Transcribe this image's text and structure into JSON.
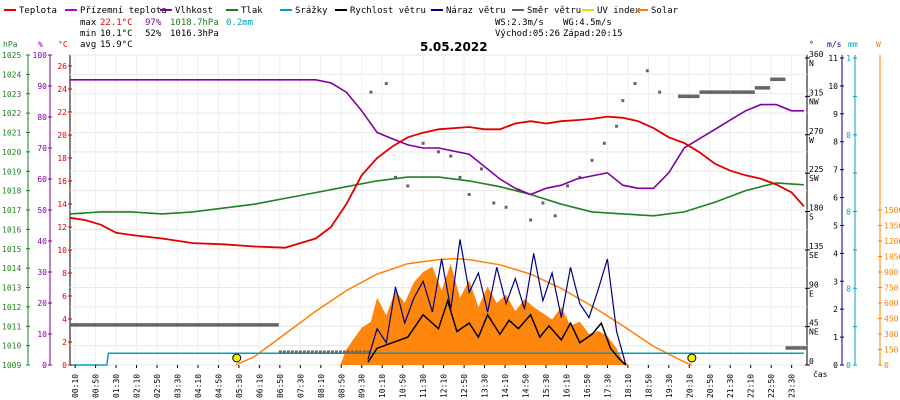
{
  "legend": [
    {
      "label": "Teplota",
      "color": "#e00000"
    },
    {
      "label": "Přízemní teplota",
      "color": "#c000c0"
    },
    {
      "label": "Vlhkost",
      "color": "#8000a0"
    },
    {
      "label": "Tlak",
      "color": "#208020"
    },
    {
      "label": "Srážky",
      "color": "#00a0c0"
    },
    {
      "label": "Rychlost větru",
      "color": "#000000"
    },
    {
      "label": "Náraz větru",
      "color": "#000080"
    },
    {
      "label": "Směr větru",
      "color": "#606060"
    },
    {
      "label": "UV index",
      "color": "#e0e000"
    },
    {
      "label": "Solar",
      "color": "#ff8000"
    }
  ],
  "stats": {
    "max": {
      "label": "max",
      "temp": "22.1°C",
      "hum": "97%",
      "press": "1018.7hPa",
      "rain": "0.2mm"
    },
    "min": {
      "label": "min",
      "temp": "10.1°C",
      "hum": "52%",
      "press": "1016.3hPa"
    },
    "avg": {
      "label": "avg",
      "temp": "15.9°C"
    }
  },
  "wind_info": {
    "ws": "WS:2.3m/s",
    "wg": "WG:4.5m/s",
    "sunrise": "Východ:05:26",
    "sunset": "Západ:20:15"
  },
  "date_title": "5.05.2022",
  "axis_units": {
    "hpa": "hPa",
    "pct": "%",
    "degc": "°C",
    "deg": "°",
    "ms": "m/s",
    "mm": "mm",
    "w": "W",
    "time": "čas"
  },
  "axes": {
    "hpa": [
      "1009",
      "1010",
      "1011",
      "1012",
      "1013",
      "1014",
      "1015",
      "1016",
      "1017",
      "1018",
      "1019",
      "1020",
      "1021",
      "1022",
      "1023",
      "1024",
      "1025"
    ],
    "pct": [
      "0",
      "10",
      "20",
      "30",
      "40",
      "50",
      "60",
      "70",
      "80",
      "90",
      "100"
    ],
    "degc": [
      "0",
      "2",
      "4",
      "6",
      "8",
      "10",
      "12",
      "14",
      "16",
      "18",
      "20",
      "22",
      "24",
      "26"
    ],
    "winddir": [
      {
        "v": 0,
        "t": "0"
      },
      {
        "v": 45,
        "t": "45",
        "s": "NE"
      },
      {
        "v": 90,
        "t": "90",
        "s": "E"
      },
      {
        "v": 135,
        "t": "135",
        "s": "SE"
      },
      {
        "v": 180,
        "t": "180",
        "s": "S"
      },
      {
        "v": 225,
        "t": "225",
        "s": "SW"
      },
      {
        "v": 270,
        "t": "270",
        "s": "W"
      },
      {
        "v": 315,
        "t": "315",
        "s": "NW"
      },
      {
        "v": 360,
        "t": "360",
        "s": "N"
      }
    ],
    "ms": [
      "0",
      "1",
      "2",
      "3",
      "4",
      "5",
      "6",
      "7",
      "8",
      "9",
      "10",
      "11"
    ],
    "mm": [
      "0",
      "1"
    ],
    "mmTicks": [
      {
        "v": 0,
        "t": "0"
      },
      {
        "v": 0.125,
        "t": ""
      },
      {
        "v": 0.25,
        "t": "0"
      },
      {
        "v": 0.375,
        "t": ""
      },
      {
        "v": 0.5,
        "t": "0"
      },
      {
        "v": 0.625,
        "t": ""
      },
      {
        "v": 0.75,
        "t": "0"
      },
      {
        "v": 0.875,
        "t": ""
      },
      {
        "v": 1,
        "t": "1"
      }
    ],
    "solar": [
      "0",
      "150",
      "300",
      "450",
      "600",
      "750",
      "900",
      "1050",
      "1200",
      "1350",
      "1500"
    ],
    "time": [
      "00:10",
      "00:50",
      "01:30",
      "02:10",
      "02:50",
      "03:30",
      "04:10",
      "04:50",
      "05:30",
      "06:10",
      "06:50",
      "07:30",
      "08:10",
      "08:50",
      "09:30",
      "10:10",
      "10:50",
      "11:30",
      "12:10",
      "12:50",
      "13:30",
      "14:10",
      "14:50",
      "15:30",
      "16:10",
      "16:50",
      "17:30",
      "18:10",
      "18:50",
      "19:30",
      "20:10",
      "20:50",
      "21:30",
      "22:10",
      "22:50",
      "23:30"
    ]
  },
  "chart_data": {
    "type": "line",
    "x_unit": "hour of day",
    "series": [
      {
        "name": "Teplota",
        "unit": "°C",
        "color": "#e00000",
        "points": [
          [
            0.0,
            12.8
          ],
          [
            0.5,
            12.6
          ],
          [
            1.0,
            12.2
          ],
          [
            1.5,
            11.5
          ],
          [
            2.0,
            11.3
          ],
          [
            3.0,
            11.0
          ],
          [
            4.0,
            10.6
          ],
          [
            5.0,
            10.5
          ],
          [
            6.0,
            10.3
          ],
          [
            7.0,
            10.2
          ],
          [
            8.0,
            11.0
          ],
          [
            8.5,
            12.0
          ],
          [
            9.0,
            14.0
          ],
          [
            9.5,
            16.5
          ],
          [
            10.0,
            18.0
          ],
          [
            10.5,
            19.0
          ],
          [
            11.0,
            19.8
          ],
          [
            11.5,
            20.2
          ],
          [
            12.0,
            20.5
          ],
          [
            13.0,
            20.7
          ],
          [
            13.5,
            20.5
          ],
          [
            14.0,
            20.5
          ],
          [
            14.5,
            21.0
          ],
          [
            15.0,
            21.2
          ],
          [
            15.5,
            21.0
          ],
          [
            16.0,
            21.2
          ],
          [
            16.5,
            21.3
          ],
          [
            17.0,
            21.4
          ],
          [
            17.5,
            21.6
          ],
          [
            18.0,
            21.5
          ],
          [
            18.5,
            21.2
          ],
          [
            19.0,
            20.6
          ],
          [
            19.5,
            19.8
          ],
          [
            20.0,
            19.3
          ],
          [
            20.5,
            18.5
          ],
          [
            21.0,
            17.5
          ],
          [
            21.5,
            16.9
          ],
          [
            22.0,
            16.5
          ],
          [
            22.5,
            16.2
          ],
          [
            23.0,
            15.7
          ],
          [
            23.5,
            15.0
          ],
          [
            23.9,
            13.8
          ]
        ]
      },
      {
        "name": "Vlhkost",
        "unit": "%",
        "color": "#8000a0",
        "points": [
          [
            0.0,
            92
          ],
          [
            4.0,
            92
          ],
          [
            6.0,
            92
          ],
          [
            7.0,
            92
          ],
          [
            8.0,
            92
          ],
          [
            8.5,
            91
          ],
          [
            9.0,
            88
          ],
          [
            9.5,
            82
          ],
          [
            10.0,
            75
          ],
          [
            10.5,
            73
          ],
          [
            11.0,
            71
          ],
          [
            11.5,
            70
          ],
          [
            12.0,
            70
          ],
          [
            13.0,
            68
          ],
          [
            14.0,
            60
          ],
          [
            14.5,
            57
          ],
          [
            15.0,
            55
          ],
          [
            15.5,
            57
          ],
          [
            16.0,
            58
          ],
          [
            16.5,
            60
          ],
          [
            17.0,
            61
          ],
          [
            17.5,
            62
          ],
          [
            18.0,
            58
          ],
          [
            18.5,
            57
          ],
          [
            19.0,
            57
          ],
          [
            19.5,
            62
          ],
          [
            20.0,
            70
          ],
          [
            20.5,
            73
          ],
          [
            21.0,
            76
          ],
          [
            21.5,
            79
          ],
          [
            22.0,
            82
          ],
          [
            22.5,
            84
          ],
          [
            23.0,
            84
          ],
          [
            23.5,
            82
          ],
          [
            23.9,
            82
          ]
        ]
      },
      {
        "name": "Tlak",
        "unit": "hPa",
        "color": "#208020",
        "points": [
          [
            0.0,
            1016.8
          ],
          [
            1.0,
            1016.9
          ],
          [
            2.0,
            1016.9
          ],
          [
            3.0,
            1016.8
          ],
          [
            4.0,
            1016.9
          ],
          [
            5.0,
            1017.1
          ],
          [
            6.0,
            1017.3
          ],
          [
            7.0,
            1017.6
          ],
          [
            8.0,
            1017.9
          ],
          [
            9.0,
            1018.2
          ],
          [
            10.0,
            1018.5
          ],
          [
            11.0,
            1018.7
          ],
          [
            12.0,
            1018.7
          ],
          [
            13.0,
            1018.5
          ],
          [
            14.0,
            1018.2
          ],
          [
            15.0,
            1017.8
          ],
          [
            16.0,
            1017.3
          ],
          [
            17.0,
            1016.9
          ],
          [
            18.0,
            1016.8
          ],
          [
            19.0,
            1016.7
          ],
          [
            20.0,
            1016.9
          ],
          [
            21.0,
            1017.4
          ],
          [
            22.0,
            1018.0
          ],
          [
            23.0,
            1018.4
          ],
          [
            23.9,
            1018.3
          ]
        ]
      },
      {
        "name": "Srážky",
        "unit": "mm",
        "color": "#00a0c0",
        "points": [
          [
            0.0,
            0.0
          ],
          [
            1.2,
            0.0
          ],
          [
            1.25,
            0.2
          ],
          [
            23.9,
            0.2
          ]
        ]
      },
      {
        "name": "Solar",
        "unit": "W/m2",
        "color": "#ff8000",
        "points": [
          [
            5.4,
            0
          ],
          [
            6.0,
            80
          ],
          [
            7.0,
            300
          ],
          [
            8.0,
            520
          ],
          [
            9.0,
            720
          ],
          [
            10.0,
            880
          ],
          [
            11.0,
            980
          ],
          [
            12.0,
            1020
          ],
          [
            12.5,
            1030
          ],
          [
            13.0,
            1020
          ],
          [
            14.0,
            970
          ],
          [
            15.0,
            880
          ],
          [
            16.0,
            740
          ],
          [
            17.0,
            570
          ],
          [
            18.0,
            380
          ],
          [
            19.0,
            180
          ],
          [
            20.0,
            30
          ],
          [
            20.25,
            0
          ]
        ]
      },
      {
        "name": "Solar (measured)",
        "unit": "W/m2",
        "color": "#ff8000",
        "points": [
          [
            8.8,
            0
          ],
          [
            9.0,
            150
          ],
          [
            9.3,
            280
          ],
          [
            9.5,
            360
          ],
          [
            9.8,
            420
          ],
          [
            10.0,
            650
          ],
          [
            10.3,
            480
          ],
          [
            10.6,
            720
          ],
          [
            10.9,
            600
          ],
          [
            11.2,
            800
          ],
          [
            11.5,
            900
          ],
          [
            11.8,
            950
          ],
          [
            12.1,
            720
          ],
          [
            12.4,
            980
          ],
          [
            12.7,
            650
          ],
          [
            13.0,
            820
          ],
          [
            13.3,
            560
          ],
          [
            13.6,
            760
          ],
          [
            13.9,
            600
          ],
          [
            14.2,
            680
          ],
          [
            14.5,
            520
          ],
          [
            14.8,
            640
          ],
          [
            15.1,
            560
          ],
          [
            15.4,
            500
          ],
          [
            15.7,
            440
          ],
          [
            16.0,
            560
          ],
          [
            16.3,
            380
          ],
          [
            16.6,
            420
          ],
          [
            16.9,
            300
          ],
          [
            17.2,
            330
          ],
          [
            17.5,
            280
          ],
          [
            17.8,
            160
          ],
          [
            18.0,
            40
          ],
          [
            18.2,
            0
          ]
        ]
      },
      {
        "name": "Rychlost větru",
        "unit": "m/s",
        "color": "#000000",
        "points": [
          [
            9.7,
            0.1
          ],
          [
            10.0,
            0.6
          ],
          [
            10.5,
            0.8
          ],
          [
            11.0,
            1.0
          ],
          [
            11.5,
            1.8
          ],
          [
            12.0,
            1.3
          ],
          [
            12.3,
            2.3
          ],
          [
            12.6,
            1.2
          ],
          [
            13.0,
            1.5
          ],
          [
            13.3,
            1.0
          ],
          [
            13.6,
            1.8
          ],
          [
            14.0,
            1.1
          ],
          [
            14.3,
            1.6
          ],
          [
            14.6,
            1.3
          ],
          [
            15.0,
            1.8
          ],
          [
            15.3,
            1.0
          ],
          [
            15.6,
            1.4
          ],
          [
            16.0,
            0.9
          ],
          [
            16.3,
            1.5
          ],
          [
            16.6,
            0.8
          ],
          [
            17.0,
            1.1
          ],
          [
            17.3,
            1.5
          ],
          [
            17.6,
            0.6
          ],
          [
            17.9,
            0.2
          ],
          [
            18.1,
            0.0
          ]
        ]
      },
      {
        "name": "Náraz větru",
        "unit": "m/s",
        "color": "#000080",
        "points": [
          [
            9.7,
            0.2
          ],
          [
            10.0,
            1.3
          ],
          [
            10.3,
            0.8
          ],
          [
            10.6,
            2.8
          ],
          [
            10.9,
            1.5
          ],
          [
            11.2,
            2.4
          ],
          [
            11.5,
            3.0
          ],
          [
            11.8,
            1.9
          ],
          [
            12.1,
            3.8
          ],
          [
            12.4,
            2.0
          ],
          [
            12.7,
            4.5
          ],
          [
            13.0,
            2.6
          ],
          [
            13.3,
            3.3
          ],
          [
            13.6,
            1.9
          ],
          [
            13.9,
            3.5
          ],
          [
            14.2,
            2.2
          ],
          [
            14.5,
            3.1
          ],
          [
            14.8,
            2.0
          ],
          [
            15.1,
            4.0
          ],
          [
            15.4,
            2.3
          ],
          [
            15.7,
            3.3
          ],
          [
            16.0,
            1.7
          ],
          [
            16.3,
            3.5
          ],
          [
            16.6,
            2.2
          ],
          [
            16.9,
            1.7
          ],
          [
            17.2,
            2.7
          ],
          [
            17.5,
            3.8
          ],
          [
            17.8,
            1.2
          ],
          [
            18.0,
            0.4
          ],
          [
            18.1,
            0.0
          ]
        ]
      }
    ],
    "wind_direction": {
      "unit": "°",
      "points": [
        [
          0.0,
          47
        ],
        [
          3.6,
          47
        ],
        [
          6.8,
          15
        ],
        [
          8.5,
          15
        ],
        [
          9.8,
          320
        ],
        [
          10.3,
          330
        ],
        [
          10.6,
          220
        ],
        [
          11.0,
          210
        ],
        [
          11.5,
          260
        ],
        [
          12.0,
          250
        ],
        [
          12.4,
          245
        ],
        [
          12.7,
          220
        ],
        [
          13.0,
          200
        ],
        [
          13.4,
          230
        ],
        [
          13.8,
          190
        ],
        [
          14.2,
          185
        ],
        [
          14.6,
          205
        ],
        [
          15.0,
          170
        ],
        [
          15.4,
          190
        ],
        [
          15.8,
          175
        ],
        [
          16.2,
          210
        ],
        [
          16.6,
          220
        ],
        [
          17.0,
          240
        ],
        [
          17.4,
          260
        ],
        [
          17.8,
          280
        ],
        [
          18.0,
          310
        ],
        [
          18.4,
          330
        ],
        [
          18.8,
          345
        ],
        [
          19.2,
          320
        ],
        [
          19.8,
          315
        ],
        [
          20.5,
          320
        ],
        [
          21.5,
          320
        ],
        [
          22.3,
          325
        ],
        [
          22.8,
          335
        ],
        [
          23.3,
          20
        ],
        [
          23.8,
          20
        ]
      ]
    },
    "sunrise_marker_h": 5.43,
    "sunset_marker_h": 20.25
  }
}
